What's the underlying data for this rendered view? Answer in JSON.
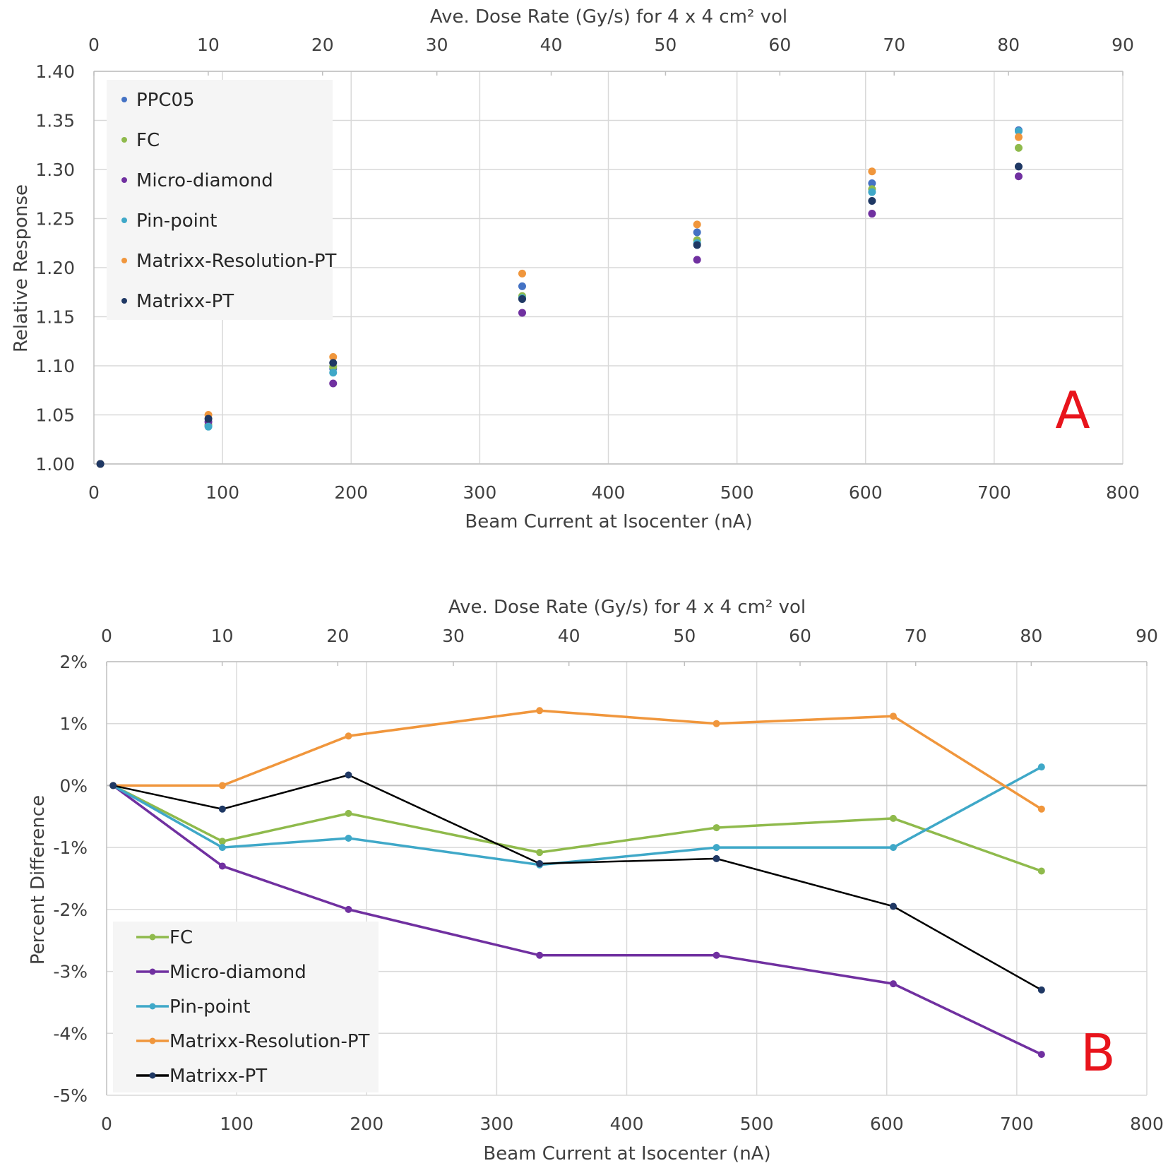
{
  "colors": {
    "PPC05": "#4472c4",
    "FC": "#8fba4c",
    "Micro-diamond": "#7030a0",
    "Pin-point": "#3fa8c8",
    "Matrixx-Resolution-PT": "#f0963c",
    "Matrixx-PT": "#1f3864",
    "Matrixx-PT-line": "#000000",
    "panel_label": "#e8141c"
  },
  "chart_data": [
    {
      "type": "scatter",
      "panel_label": "A",
      "xlabel": "Beam Current at Isocenter (nA)",
      "ylabel": "Relative Response",
      "x2label": "Ave. Dose Rate (Gy/s) for 4 x 4 cm² vol",
      "xlim": [
        0,
        800
      ],
      "ylim": [
        1.0,
        1.4
      ],
      "x2lim": [
        0,
        90
      ],
      "xticks": [
        0,
        100,
        200,
        300,
        400,
        500,
        600,
        700,
        800
      ],
      "yticks": [
        1.0,
        1.05,
        1.1,
        1.15,
        1.2,
        1.25,
        1.3,
        1.35,
        1.4
      ],
      "x2ticks": [
        0,
        10,
        20,
        30,
        40,
        50,
        60,
        70,
        80,
        90
      ],
      "yformat": "fixed2",
      "legend_position": "top-left",
      "x": [
        5,
        89,
        186,
        333,
        469,
        605,
        719
      ],
      "series": [
        {
          "name": "PPC05",
          "values": [
            1.0,
            1.039,
            1.097,
            1.181,
            1.236,
            1.286,
            1.34
          ]
        },
        {
          "name": "FC",
          "values": [
            1.0,
            1.04,
            1.099,
            1.171,
            1.228,
            1.28,
            1.322
          ]
        },
        {
          "name": "Micro-diamond",
          "values": [
            1.0,
            1.043,
            1.082,
            1.154,
            1.208,
            1.255,
            1.293
          ]
        },
        {
          "name": "Pin-point",
          "values": [
            1.0,
            1.038,
            1.093,
            1.169,
            1.225,
            1.277,
            1.339
          ]
        },
        {
          "name": "Matrixx-Resolution-PT",
          "values": [
            1.0,
            1.05,
            1.109,
            1.194,
            1.244,
            1.298,
            1.333
          ]
        },
        {
          "name": "Matrixx-PT",
          "values": [
            1.0,
            1.046,
            1.103,
            1.168,
            1.223,
            1.268,
            1.303
          ]
        }
      ]
    },
    {
      "type": "line",
      "panel_label": "B",
      "xlabel": "Beam Current at Isocenter (nA)",
      "ylabel": "Percent Difference",
      "x2label": "Ave. Dose Rate (Gy/s) for 4 x 4 cm² vol",
      "xlim": [
        0,
        800
      ],
      "ylim": [
        -5,
        2
      ],
      "x2lim": [
        0,
        90
      ],
      "xticks": [
        0,
        100,
        200,
        300,
        400,
        500,
        600,
        700,
        800
      ],
      "yticks": [
        -5,
        -4,
        -3,
        -2,
        -1,
        0,
        1,
        2
      ],
      "x2ticks": [
        0,
        10,
        20,
        30,
        40,
        50,
        60,
        70,
        80,
        90
      ],
      "yformat": "percent",
      "legend_position": "bottom-left",
      "x": [
        5,
        89,
        186,
        333,
        469,
        605,
        719
      ],
      "series": [
        {
          "name": "FC",
          "values": [
            0,
            -0.9,
            -0.45,
            -1.08,
            -0.68,
            -0.53,
            -1.38
          ]
        },
        {
          "name": "Micro-diamond",
          "values": [
            0,
            -1.3,
            -2.0,
            -2.74,
            -2.74,
            -3.2,
            -4.34
          ]
        },
        {
          "name": "Pin-point",
          "values": [
            0,
            -1.0,
            -0.85,
            -1.28,
            -1.0,
            -1.0,
            0.3
          ]
        },
        {
          "name": "Matrixx-Resolution-PT",
          "values": [
            0,
            0.0,
            0.8,
            1.21,
            1.0,
            1.12,
            -0.38
          ]
        },
        {
          "name": "Matrixx-PT",
          "values": [
            0,
            -0.38,
            0.17,
            -1.26,
            -1.18,
            -1.95,
            -3.3
          ]
        }
      ]
    }
  ]
}
